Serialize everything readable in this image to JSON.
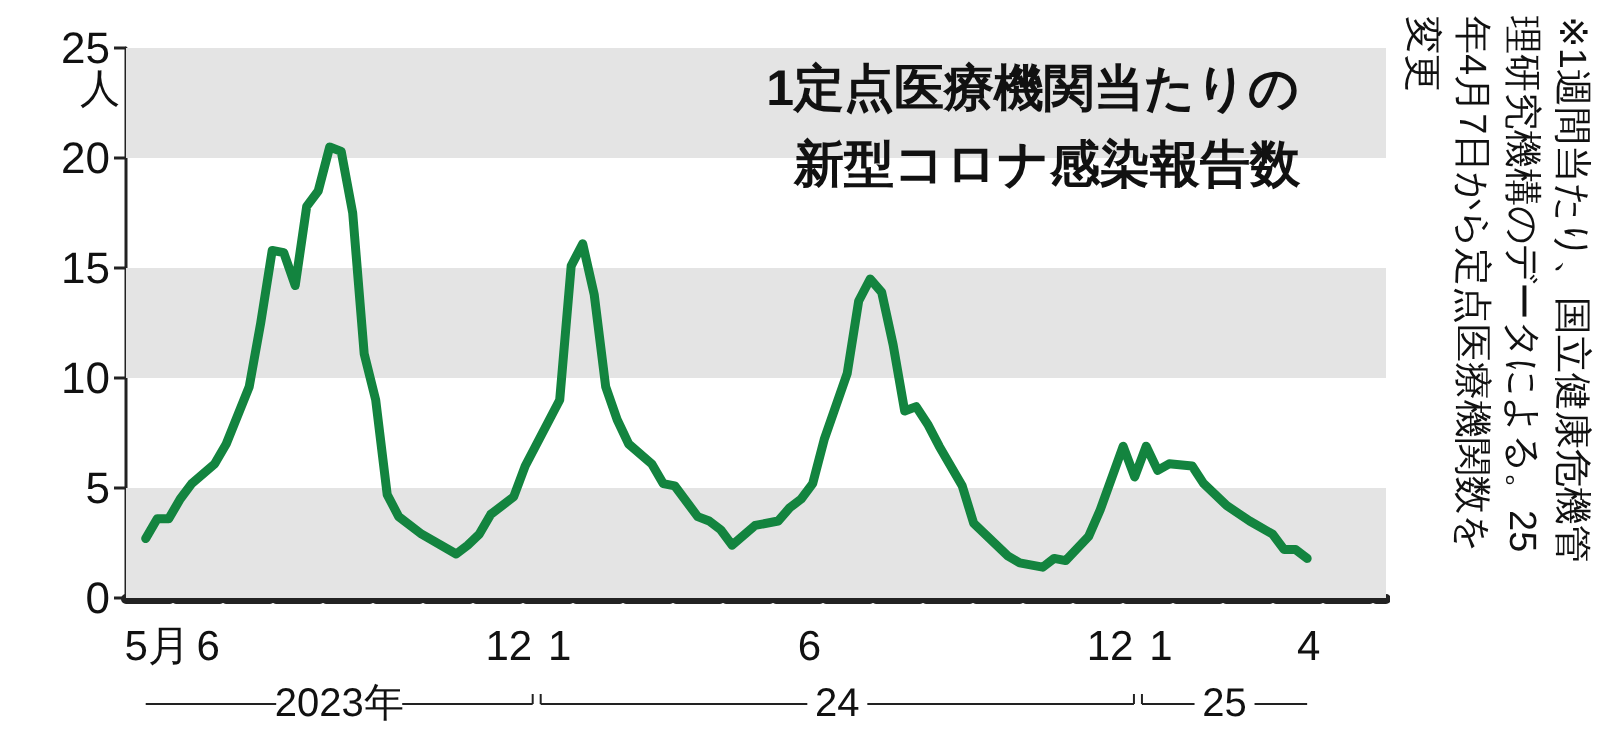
{
  "chart_data": {
    "type": "line",
    "title": "1定点医療機関当たりの",
    "subtitle": "新型コロナ感染報告数",
    "ylabel": "人",
    "x": [
      "2023-05-08",
      "2023-05-15",
      "2023-05-22",
      "2023-05-29",
      "2023-06-05",
      "2023-06-19",
      "2023-06-26",
      "2023-07-10",
      "2023-07-17",
      "2023-07-24",
      "2023-07-31",
      "2023-08-07",
      "2023-08-14",
      "2023-08-21",
      "2023-08-28",
      "2023-09-04",
      "2023-09-11",
      "2023-09-18",
      "2023-09-25",
      "2023-10-02",
      "2023-10-09",
      "2023-10-23",
      "2023-11-13",
      "2023-11-20",
      "2023-11-27",
      "2023-12-04",
      "2023-12-18",
      "2023-12-25",
      "2024-01-01",
      "2024-01-15",
      "2024-01-22",
      "2024-01-29",
      "2024-02-05",
      "2024-02-12",
      "2024-02-19",
      "2024-02-26",
      "2024-03-11",
      "2024-03-18",
      "2024-03-25",
      "2024-04-08",
      "2024-04-15",
      "2024-04-22",
      "2024-04-29",
      "2024-05-13",
      "2024-05-27",
      "2024-06-03",
      "2024-06-10",
      "2024-06-17",
      "2024-06-24",
      "2024-07-08",
      "2024-07-15",
      "2024-07-22",
      "2024-07-29",
      "2024-08-05",
      "2024-08-12",
      "2024-08-19",
      "2024-08-26",
      "2024-09-02",
      "2024-09-16",
      "2024-09-23",
      "2024-10-14",
      "2024-10-21",
      "2024-11-04",
      "2024-11-11",
      "2024-11-18",
      "2024-12-02",
      "2024-12-09",
      "2024-12-23",
      "2024-12-30",
      "2025-01-06",
      "2025-01-13",
      "2025-01-20",
      "2025-02-03",
      "2025-02-10",
      "2025-02-24",
      "2025-03-10",
      "2025-03-24",
      "2025-03-31",
      "2025-04-07",
      "2025-04-14"
    ],
    "series": [
      {
        "color": "#13843f",
        "values": [
          2.7,
          3.6,
          3.6,
          4.5,
          5.2,
          6.1,
          7.0,
          9.6,
          12.5,
          15.8,
          15.7,
          14.2,
          17.8,
          18.5,
          20.5,
          20.3,
          17.5,
          11.1,
          9.0,
          4.7,
          3.7,
          2.9,
          2.0,
          2.4,
          2.9,
          3.8,
          4.6,
          6.0,
          7.0,
          9.0,
          15.1,
          16.1,
          13.8,
          9.6,
          8.1,
          7.0,
          6.1,
          5.2,
          5.1,
          3.7,
          3.5,
          3.1,
          2.4,
          3.3,
          3.5,
          4.1,
          4.5,
          5.2,
          7.2,
          10.2,
          13.5,
          14.5,
          13.9,
          11.5,
          8.5,
          8.7,
          7.9,
          6.9,
          5.1,
          3.4,
          1.9,
          1.6,
          1.4,
          1.8,
          1.7,
          2.8,
          4.0,
          6.9,
          5.5,
          6.9,
          5.8,
          6.1,
          6.0,
          5.2,
          4.2,
          3.5,
          2.9,
          2.2,
          2.2,
          1.8
        ]
      }
    ],
    "xlim": [
      "2023-04-26",
      "2025-06-01"
    ],
    "xticks": [
      {
        "value": "2023-05-15",
        "label": "5月"
      },
      {
        "value": "2023-06-15",
        "label": "6"
      },
      {
        "value": "2023-12-15",
        "label": "12"
      },
      {
        "value": "2024-01-15",
        "label": "1"
      },
      {
        "value": "2024-06-15",
        "label": "6"
      },
      {
        "value": "2024-12-15",
        "label": "12"
      },
      {
        "value": "2025-01-15",
        "label": "1"
      },
      {
        "value": "2025-04-15",
        "label": "4"
      }
    ],
    "ylim": [
      0,
      25
    ],
    "yticks": [
      0,
      5,
      10,
      15,
      20,
      25
    ],
    "grid": false,
    "marker": "none",
    "line_style": "solid",
    "bands": [
      {
        "axis": "y",
        "from": 0,
        "to": 5,
        "color": "#e4e4e4"
      },
      {
        "axis": "y",
        "from": 10,
        "to": 15,
        "color": "#e4e4e4"
      },
      {
        "axis": "y",
        "from": 20,
        "to": 25,
        "color": "#e4e4e4"
      }
    ],
    "annotations": [
      "2023年",
      "24",
      "25",
      "※1週間当たり、国立健康危機管理研究機構のデータによる。25年4月7日から定点医療機関数を変更"
    ]
  }
}
